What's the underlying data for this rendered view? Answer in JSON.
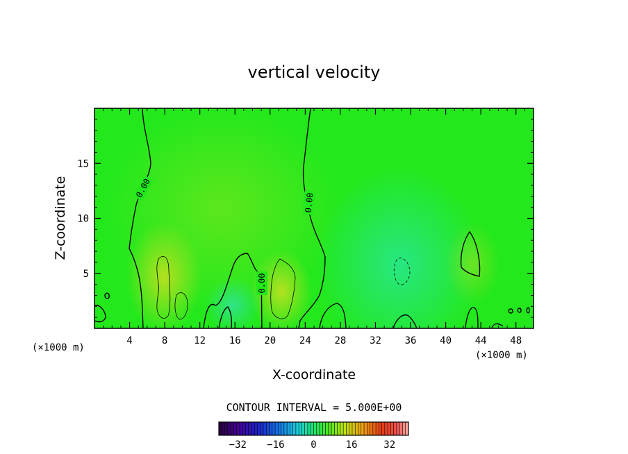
{
  "chart_data": {
    "type": "heatmap",
    "title": "vertical velocity",
    "xlabel": "X-coordinate",
    "ylabel": "Z-coordinate",
    "x_unit_left": "(×1000 m)",
    "x_unit_right": "(×1000 m)",
    "xlim": [
      0,
      50
    ],
    "ylim": [
      0,
      20
    ],
    "x_ticks": [
      4,
      8,
      12,
      16,
      20,
      24,
      28,
      32,
      36,
      40,
      44,
      48
    ],
    "y_ticks": [
      5,
      10,
      15
    ],
    "contour_interval_text": "CONTOUR INTERVAL = 5.000E+00",
    "contour_labels": [
      "0.00",
      "0.00",
      "0.00"
    ],
    "colorbar": {
      "min": -40,
      "max": 40,
      "ticks": [
        -32,
        -16,
        0,
        16,
        32
      ],
      "tick_labels": [
        "−32",
        "−16",
        "0",
        "16",
        "32"
      ]
    },
    "background_color": "#22e81c",
    "features": [
      {
        "kind": "updraft",
        "x": 22.5,
        "z": 11,
        "value": 6
      },
      {
        "kind": "updraft",
        "x": 8,
        "z": 4.2,
        "value": 10
      },
      {
        "kind": "updraft",
        "x": 21.5,
        "z": 3.5,
        "value": 12
      },
      {
        "kind": "downdraft",
        "x": 34.5,
        "z": 5.5,
        "value": -6
      },
      {
        "kind": "downdraft",
        "x": 16,
        "z": 2,
        "value": -4
      }
    ]
  }
}
